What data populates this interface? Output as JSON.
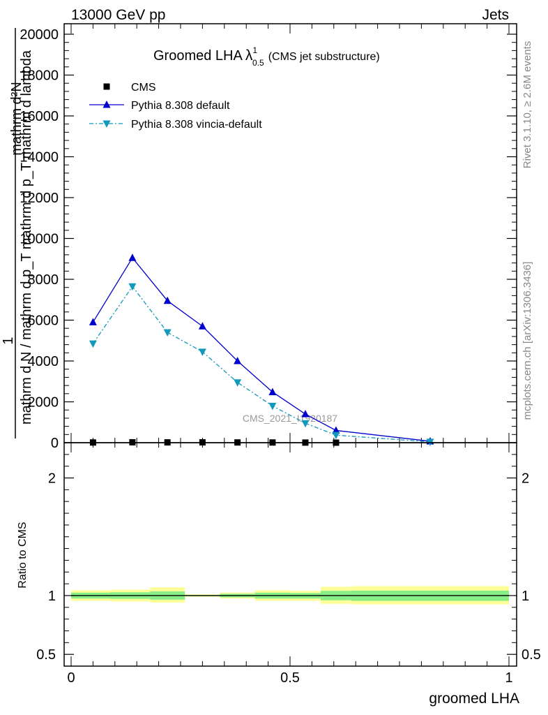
{
  "header": {
    "left": "13000 GeV pp",
    "right": "Jets"
  },
  "side_labels": {
    "rivet": "Rivet 3.1.10, ≥ 2.6M events",
    "mcplots": "mcplots.cern.ch [arXiv:1306.3436]"
  },
  "watermark": "CMS_2021_I1920187",
  "colors": {
    "pythia_default": "#0000cc",
    "pythia_vincia": "#1199bb",
    "band_outer": "#ffff99",
    "band_inner": "#88ee88"
  },
  "chart_data": [
    {
      "type": "line",
      "title": "Groomed LHA",
      "title_symbol": "λ",
      "title_sup": "1",
      "title_sub": "0.5",
      "title_note": "(CMS jet substructure)",
      "ylabel_num": "1",
      "ylabel_den": "mathrm d N / mathrm d p_T mathrm d p_T mathrm d lambda",
      "ylabel_extra": "mathrm d²N",
      "xlim": [
        0,
        1
      ],
      "ylim": [
        0,
        20000
      ],
      "yticks": [
        0,
        2000,
        4000,
        6000,
        8000,
        10000,
        12000,
        14000,
        16000,
        18000,
        20000
      ],
      "ytick_labels": [
        "0",
        "2000",
        "4000",
        "6000",
        "8000",
        "10000",
        "12000",
        "14000",
        "16000",
        "18000",
        "20000"
      ],
      "legend_position": "top-left",
      "series": [
        {
          "name": "CMS",
          "marker": "square",
          "x": [
            0.05,
            0.14,
            0.22,
            0.3,
            0.38,
            0.46,
            0.535,
            0.605
          ],
          "values": [
            10,
            20,
            15,
            18,
            12,
            9,
            5,
            2
          ]
        },
        {
          "name": "Pythia 8.308 default",
          "marker": "triangle-up",
          "x": [
            0.05,
            0.14,
            0.22,
            0.3,
            0.38,
            0.46,
            0.535,
            0.605,
            0.82
          ],
          "values": [
            5900,
            9050,
            6950,
            5700,
            4000,
            2480,
            1400,
            600,
            70
          ]
        },
        {
          "name": "Pythia 8.308 vincia-default",
          "marker": "triangle-down",
          "x": [
            0.05,
            0.14,
            0.22,
            0.3,
            0.38,
            0.46,
            0.535,
            0.605,
            0.82
          ],
          "values": [
            4850,
            7650,
            5400,
            4450,
            2950,
            1800,
            950,
            370,
            40
          ]
        }
      ]
    },
    {
      "type": "area",
      "ylabel": "Ratio to CMS",
      "xlabel": "groomed LHA",
      "xlim": [
        0,
        1
      ],
      "ylim": [
        0.4,
        2.3
      ],
      "yticks": [
        0.5,
        1,
        2
      ],
      "ytick_labels": [
        "0.5",
        "1",
        "2"
      ],
      "xticks": [
        0,
        0.5,
        1
      ],
      "xtick_labels": [
        "0",
        "0.5",
        "1"
      ],
      "bins": [
        {
          "lo": 0.0,
          "hi": 0.09,
          "outer": [
            0.955,
            1.045
          ],
          "inner": [
            0.975,
            1.025
          ]
        },
        {
          "lo": 0.09,
          "hi": 0.18,
          "outer": [
            0.95,
            1.05
          ],
          "inner": [
            0.972,
            1.028
          ]
        },
        {
          "lo": 0.18,
          "hi": 0.26,
          "outer": [
            0.94,
            1.07
          ],
          "inner": [
            0.965,
            1.035
          ]
        },
        {
          "lo": 0.26,
          "hi": 0.34,
          "outer": [
            0.99,
            1.01
          ],
          "inner": [
            0.995,
            1.005
          ]
        },
        {
          "lo": 0.34,
          "hi": 0.42,
          "outer": [
            0.975,
            1.025
          ],
          "inner": [
            0.985,
            1.015
          ]
        },
        {
          "lo": 0.42,
          "hi": 0.5,
          "outer": [
            0.955,
            1.045
          ],
          "inner": [
            0.975,
            1.025
          ]
        },
        {
          "lo": 0.5,
          "hi": 0.57,
          "outer": [
            0.955,
            1.04
          ],
          "inner": [
            0.975,
            1.022
          ]
        },
        {
          "lo": 0.57,
          "hi": 0.64,
          "outer": [
            0.93,
            1.075
          ],
          "inner": [
            0.96,
            1.04
          ]
        },
        {
          "lo": 0.64,
          "hi": 1.0,
          "outer": [
            0.925,
            1.08
          ],
          "inner": [
            0.955,
            1.042
          ]
        }
      ],
      "reference_value": 1
    }
  ]
}
